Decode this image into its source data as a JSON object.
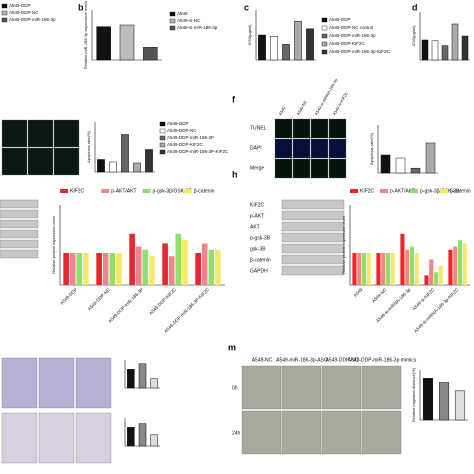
{
  "panel_a": {
    "legend": [
      "A549-DDP",
      "A549-DDP-NC",
      "A549-DDP-miR-186-3p"
    ],
    "colors": [
      "#111111",
      "#bbbbbb",
      "#555555"
    ]
  },
  "panel_b": {
    "label": "b",
    "y_label": "Relative miR-186-3p expression levels",
    "legend": [
      "A549",
      "A549-si-NC",
      "A549-si-miR-186-3p"
    ],
    "colors": [
      "#111111",
      "#bbbbbb",
      "#555555"
    ],
    "values": [
      1.0,
      1.05,
      0.38
    ],
    "ylim": [
      0,
      1.5
    ]
  },
  "panel_c": {
    "label": "c",
    "y_label": "IC50(μg/ml)",
    "legend": [
      "A549-DDP",
      "A549-DDP-NC control",
      "A549-DDP-miR-186-3p",
      "A549-DDP-KIF2C",
      "A549-DDP-miR-186-3p-KIF2C"
    ],
    "colors": [
      "#111111",
      "#ffffff",
      "#666666",
      "#aaaaaa",
      "#333333"
    ],
    "values": [
      0.4,
      0.38,
      0.25,
      0.62,
      0.5
    ],
    "ylim": [
      0,
      0.8
    ]
  },
  "panel_d": {
    "label": "d",
    "y_label": "IC50(μg/ml)",
    "colors": [
      "#111111",
      "#ffffff",
      "#666666",
      "#aaaaaa",
      "#333333"
    ],
    "values": [
      0.25,
      0.24,
      0.18,
      0.45,
      0.3
    ],
    "ylim": [
      0,
      0.6
    ]
  },
  "panel_e": {
    "y_label": "Apoptosis rate(%)",
    "legend": [
      "A549-DDP",
      "A549-DDP-NC",
      "A549-DDP-miR-186-3P",
      "A549-DDP-KIF2C",
      "A549-DDP-miR-186-3P-KIF2C"
    ],
    "colors": [
      "#111111",
      "#ffffff",
      "#666666",
      "#aaaaaa",
      "#333333"
    ],
    "values": [
      25,
      20,
      75,
      18,
      45
    ],
    "ylim": [
      0,
      100
    ]
  },
  "panel_f": {
    "label": "f",
    "row_labels": [
      "TUNEL",
      "DAPI",
      "Merge"
    ],
    "column_labels": [
      "A549",
      "A549-NC",
      "A549-si-miRNA-186-3p",
      "A549-si-KIF2C"
    ],
    "y_label": "Apoptosis rate(%)",
    "colors": [
      "#111111",
      "#ffffff",
      "#666666",
      "#aaaaaa"
    ],
    "values": [
      30,
      25,
      8,
      50
    ],
    "ylim": [
      0,
      80
    ]
  },
  "panel_g": {
    "y_label": "Relative protein expression level",
    "categories": [
      "A549-DDP",
      "A549-DDP-NC",
      "A549-DDP-miR-186-3P",
      "A549-DDP-KIF2C",
      "A549-DDP-miR-186-3P-KIF2C"
    ],
    "ylim": [
      0,
      2.5
    ],
    "series": [
      {
        "name": "KIF2C",
        "color": "#e8262b",
        "values": [
          1.0,
          1.0,
          1.6,
          1.3,
          1.0
        ]
      },
      {
        "name": "p-AKT/AKT",
        "color": "#f0858d",
        "values": [
          1.0,
          1.0,
          1.2,
          0.9,
          1.3
        ]
      },
      {
        "name": "p-gsk-3β/GSK-3B",
        "color": "#8fe06b",
        "values": [
          1.0,
          1.0,
          1.1,
          1.6,
          1.1
        ]
      },
      {
        "name": "β-catenin",
        "color": "#f5e96a",
        "values": [
          1.0,
          1.0,
          0.9,
          1.4,
          1.1
        ]
      }
    ]
  },
  "panel_h": {
    "label": "h",
    "blot_labels": [
      "KIF2C",
      "p-AKT",
      "AKT",
      "p-gsk-3B",
      "gsk-3B",
      "β-catenin",
      "GAPDH"
    ],
    "y_label": "Relative protein expression level",
    "categories": [
      "A549",
      "A549-NC",
      "A549-si-miRNA-186-3p",
      "A549-si-KIF2C",
      "A549-si-miRNA-186-3p-KIF2C"
    ],
    "ylim": [
      0,
      2.5
    ],
    "series": [
      {
        "name": "KIF2C",
        "color": "#e8262b",
        "values": [
          1.0,
          1.0,
          1.6,
          0.3,
          1.1
        ]
      },
      {
        "name": "p-AKT/AKT",
        "color": "#f0858d",
        "values": [
          1.0,
          1.0,
          1.1,
          0.8,
          1.2
        ]
      },
      {
        "name": "p-gsk-3β/GSK-3B",
        "color": "#8fe06b",
        "values": [
          1.0,
          1.0,
          1.2,
          0.4,
          1.4
        ]
      },
      {
        "name": "β-catenin",
        "color": "#f5e96a",
        "values": [
          1.0,
          1.0,
          1.0,
          0.6,
          1.3
        ]
      }
    ]
  },
  "panel_l1": {
    "colors": [
      "#111111",
      "#888888",
      "#dddddd"
    ],
    "values": [
      1.0,
      1.3,
      0.5
    ],
    "ylim": [
      0,
      1.5
    ]
  },
  "panel_l2": {
    "colors": [
      "#111111",
      "#888888",
      "#dddddd"
    ],
    "values": [
      1.0,
      1.2,
      0.6
    ],
    "ylim": [
      0,
      1.5
    ]
  },
  "panel_m": {
    "label": "m",
    "column_labels": [
      "A549-NC",
      "A549-miR-186-3p-ASO",
      "A549-DDP-NC",
      "A549-DDP-miR-186-3p mimics"
    ],
    "row_labels": [
      "0h",
      "24h"
    ],
    "y_label": "Relative migration distance(%)",
    "colors": [
      "#111111",
      "#888888",
      "#dddddd"
    ],
    "values": [
      1.0,
      0.9,
      0.7
    ],
    "ylim": [
      0,
      1.2
    ]
  }
}
